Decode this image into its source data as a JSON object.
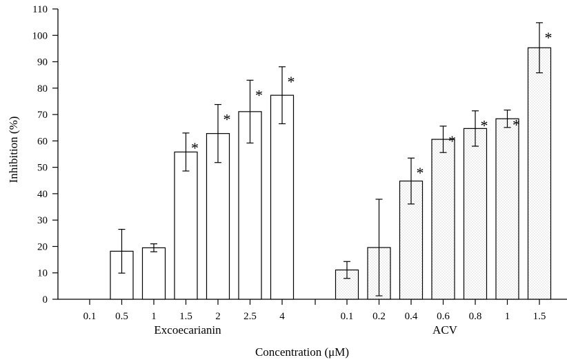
{
  "chart_data": {
    "type": "bar",
    "xlabel": "Concentration (μM)",
    "ylabel": "Inhibition (%)",
    "ylim": [
      0,
      110
    ],
    "yticks": [
      0,
      10,
      20,
      30,
      40,
      50,
      60,
      70,
      80,
      90,
      100,
      110
    ],
    "grid": false,
    "groups": [
      {
        "label": "Excoecarianin",
        "fill": "plain",
        "categories": [
          "0.1",
          "0.5",
          "1",
          "1.5",
          "2",
          "2.5",
          "4"
        ],
        "values": [
          0,
          18.2,
          19.5,
          55.8,
          62.8,
          71.1,
          77.3
        ],
        "errors": [
          0,
          8.3,
          1.5,
          7.2,
          11.0,
          11.9,
          10.8
        ],
        "significant": [
          false,
          false,
          false,
          true,
          true,
          true,
          true
        ]
      },
      {
        "label": "ACV",
        "fill": "dotted",
        "categories": [
          "0.1",
          "0.2",
          "0.4",
          "0.6",
          "0.8",
          "1",
          "1.5"
        ],
        "values": [
          11.1,
          19.6,
          44.8,
          60.6,
          64.7,
          68.4,
          95.3
        ],
        "errors": [
          3.2,
          18.3,
          8.7,
          5.0,
          6.7,
          3.3,
          9.5
        ],
        "significant": [
          false,
          false,
          true,
          true,
          true,
          true,
          true
        ]
      }
    ],
    "significance_marker": "*"
  }
}
